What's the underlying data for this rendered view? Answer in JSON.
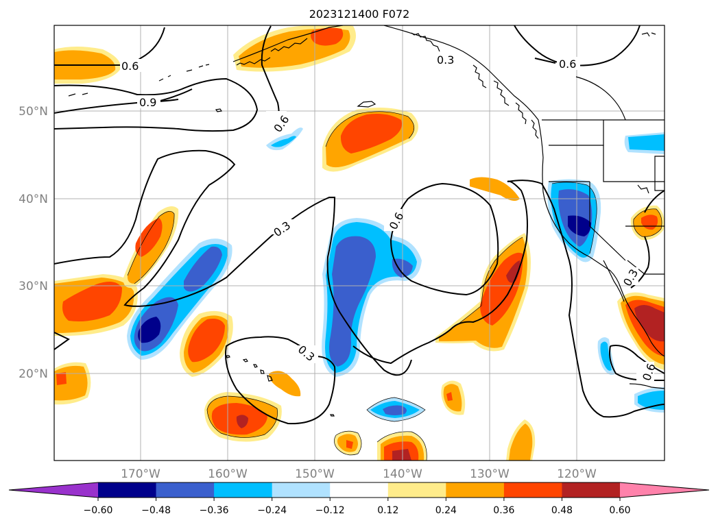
{
  "title": "2023121400 F072",
  "map": {
    "lat_labels": [
      "50°N",
      "40°N",
      "30°N",
      "20°N"
    ],
    "lon_labels": [
      "170°W",
      "160°W",
      "150°W",
      "140°W",
      "130°W",
      "120°W"
    ],
    "contour_labels": [
      "0.6",
      "0.9",
      "0.6",
      "0.3",
      "0.6",
      "0.3",
      "0.3",
      "0.6",
      "0.3",
      "0.6"
    ],
    "grid": "on"
  },
  "colorbar": {
    "ticks": [
      "−0.60",
      "−0.48",
      "−0.36",
      "−0.24",
      "−0.12",
      "0.12",
      "0.24",
      "0.36",
      "0.48",
      "0.60"
    ],
    "colors": [
      "#9932cc",
      "#00008b",
      "#3a5fcd",
      "#00bfff",
      "#b0e2ff",
      "#ffffff",
      "#ffec8b",
      "#ffa500",
      "#ff4500",
      "#b22222",
      "#ff82ab"
    ]
  }
}
